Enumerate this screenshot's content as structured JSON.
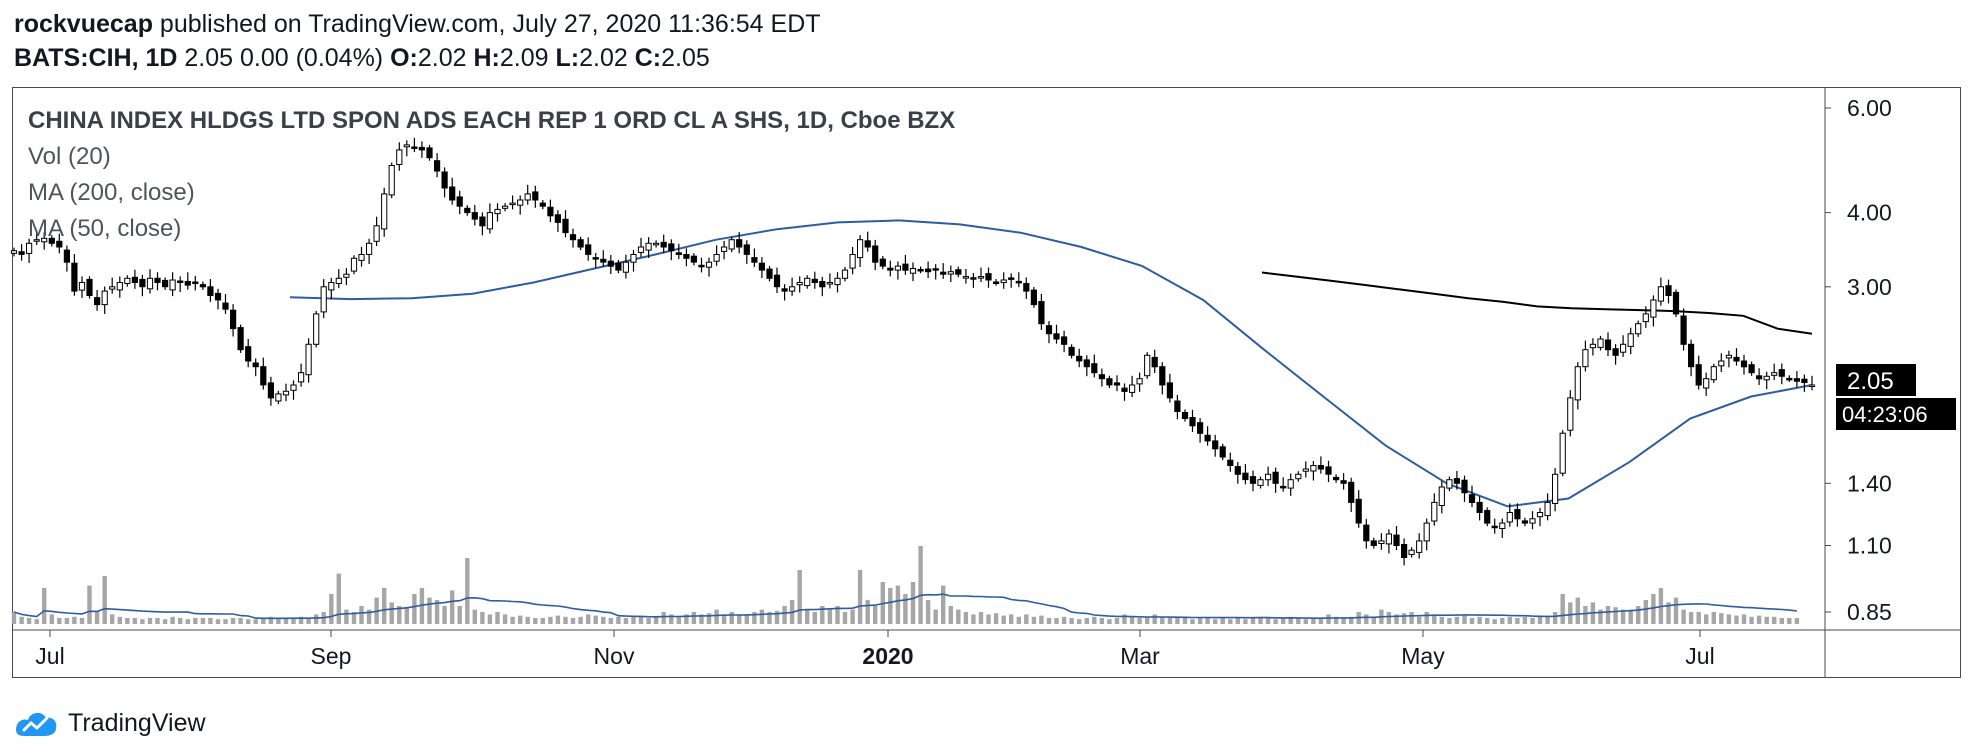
{
  "header": {
    "author": "rockvuecap",
    "published": " published on TradingView.com, July 27, 2020 11:36:54 EDT",
    "symbol": "BATS:CIH, 1D",
    "quote": "2.05 0.00 (0.04%)",
    "o_label": "O:",
    "o_val": "2.02",
    "h_label": "H:",
    "h_val": "2.09",
    "l_label": "L:",
    "l_val": "2.02",
    "c_label": "C:",
    "c_val": "2.05"
  },
  "legend": {
    "title": "CHINA INDEX HLDGS LTD SPON ADS EACH REP 1 ORD CL A SHS, 1D, Cboe BZX",
    "vol": "Vol (20)",
    "ma200": "MA (200, close)",
    "ma50": "MA (50, close)"
  },
  "footer": {
    "brand": "TradingView"
  },
  "colors": {
    "candle": "#000000",
    "ma50": "#2e5d9f",
    "ma200": "#000000",
    "volume": "#a6a6a6",
    "vol_ma": "#2e5d9f",
    "price_tag_bg": "#000000",
    "price_tag_fg": "#ffffff"
  },
  "chart_data": {
    "type": "candlestick",
    "scale": "log",
    "x_ticks": [
      "Jul",
      "Sep",
      "Nov",
      "2020",
      "Mar",
      "May",
      "Jul"
    ],
    "y_ticks": [
      6.0,
      4.0,
      3.0,
      1.4,
      1.1,
      0.85
    ],
    "last_price": "2.05",
    "countdown": "04:23:06",
    "series": [
      {
        "name": "CIH",
        "kind": "candles",
        "close": [
          3.45,
          3.4,
          3.55,
          3.6,
          3.62,
          3.55,
          3.5,
          3.3,
          2.95,
          3.05,
          2.9,
          2.8,
          2.95,
          3.0,
          3.05,
          3.1,
          3.05,
          3.0,
          3.1,
          3.05,
          3.0,
          3.08,
          3.05,
          3.02,
          3.05,
          3.0,
          2.9,
          2.85,
          2.75,
          2.55,
          2.35,
          2.25,
          2.2,
          2.05,
          1.95,
          1.98,
          2.0,
          2.05,
          2.15,
          2.4,
          2.7,
          3.0,
          3.05,
          3.1,
          3.15,
          3.35,
          3.4,
          3.55,
          3.8,
          4.3,
          4.8,
          5.1,
          5.2,
          5.15,
          5.1,
          4.95,
          4.7,
          4.4,
          4.2,
          4.1,
          4.0,
          3.9,
          3.8,
          4.0,
          4.05,
          4.1,
          4.15,
          4.2,
          4.3,
          4.2,
          4.1,
          3.95,
          3.85,
          3.7,
          3.6,
          3.5,
          3.4,
          3.35,
          3.3,
          3.25,
          3.2,
          3.3,
          3.4,
          3.5,
          3.55,
          3.55,
          3.5,
          3.45,
          3.4,
          3.35,
          3.3,
          3.25,
          3.3,
          3.4,
          3.5,
          3.6,
          3.5,
          3.4,
          3.3,
          3.2,
          3.1,
          3.0,
          2.95,
          3.0,
          3.05,
          3.1,
          3.05,
          3.0,
          3.05,
          3.1,
          3.2,
          3.4,
          3.6,
          3.5,
          3.3,
          3.25,
          3.2,
          3.25,
          3.2,
          3.22,
          3.2,
          3.18,
          3.2,
          3.15,
          3.18,
          3.15,
          3.12,
          3.1,
          3.12,
          3.08,
          3.05,
          3.08,
          3.1,
          3.05,
          2.95,
          2.8,
          2.6,
          2.5,
          2.45,
          2.4,
          2.3,
          2.25,
          2.2,
          2.15,
          2.1,
          2.05,
          2.05,
          2.0,
          2.05,
          2.1,
          2.3,
          2.2,
          2.05,
          1.95,
          1.85,
          1.8,
          1.75,
          1.7,
          1.65,
          1.6,
          1.55,
          1.5,
          1.45,
          1.42,
          1.4,
          1.42,
          1.45,
          1.4,
          1.38,
          1.42,
          1.45,
          1.48,
          1.5,
          1.48,
          1.45,
          1.42,
          1.4,
          1.3,
          1.2,
          1.12,
          1.1,
          1.12,
          1.15,
          1.1,
          1.05,
          1.08,
          1.12,
          1.2,
          1.3,
          1.38,
          1.42,
          1.4,
          1.35,
          1.3,
          1.25,
          1.2,
          1.18,
          1.2,
          1.25,
          1.22,
          1.2,
          1.22,
          1.25,
          1.3,
          1.45,
          1.7,
          1.95,
          2.2,
          2.35,
          2.4,
          2.45,
          2.35,
          2.3,
          2.4,
          2.5,
          2.6,
          2.7,
          2.85,
          3.0,
          2.9,
          2.7,
          2.4,
          2.2,
          2.05,
          2.1,
          2.2,
          2.25,
          2.3,
          2.25,
          2.2,
          2.15,
          2.1,
          2.12,
          2.15,
          2.12,
          2.1,
          2.08,
          2.07,
          2.05
        ]
      },
      {
        "name": "MA (50, close)",
        "kind": "line",
        "values": [
          2.88,
          2.86,
          2.87,
          2.92,
          3.05,
          3.22,
          3.4,
          3.6,
          3.75,
          3.85,
          3.88,
          3.82,
          3.7,
          3.5,
          3.25,
          2.85,
          2.35,
          1.95,
          1.62,
          1.4,
          1.28,
          1.32,
          1.52,
          1.8,
          1.96,
          2.05
        ]
      },
      {
        "name": "MA (200, close)",
        "kind": "line",
        "values": [
          3.17,
          3.12,
          3.07,
          3.02,
          2.97,
          2.92,
          2.87,
          2.83,
          2.78,
          2.76,
          2.75,
          2.74,
          2.73,
          2.71,
          2.68,
          2.55,
          2.5
        ]
      },
      {
        "name": "Vol (20)",
        "kind": "bars",
        "values": [
          0.1,
          0.06,
          0.05,
          0.04,
          0.3,
          0.08,
          0.05,
          0.05,
          0.06,
          0.05,
          0.32,
          0.1,
          0.4,
          0.08,
          0.06,
          0.05,
          0.05,
          0.04,
          0.05,
          0.05,
          0.04,
          0.06,
          0.05,
          0.04,
          0.05,
          0.05,
          0.05,
          0.04,
          0.04,
          0.05,
          0.05,
          0.04,
          0.04,
          0.05,
          0.06,
          0.05,
          0.05,
          0.05,
          0.06,
          0.05,
          0.08,
          0.1,
          0.25,
          0.42,
          0.12,
          0.1,
          0.15,
          0.12,
          0.22,
          0.3,
          0.18,
          0.15,
          0.14,
          0.25,
          0.3,
          0.22,
          0.2,
          0.15,
          0.28,
          0.15,
          0.55,
          0.12,
          0.1,
          0.08,
          0.1,
          0.08,
          0.06,
          0.07,
          0.06,
          0.05,
          0.05,
          0.06,
          0.07,
          0.06,
          0.05,
          0.06,
          0.08,
          0.07,
          0.06,
          0.05,
          0.06,
          0.05,
          0.06,
          0.07,
          0.05,
          0.06,
          0.1,
          0.08,
          0.06,
          0.08,
          0.1,
          0.08,
          0.09,
          0.12,
          0.08,
          0.1,
          0.08,
          0.08,
          0.1,
          0.12,
          0.1,
          0.11,
          0.15,
          0.2,
          0.45,
          0.12,
          0.1,
          0.15,
          0.12,
          0.15,
          0.1,
          0.12,
          0.45,
          0.2,
          0.15,
          0.35,
          0.3,
          0.32,
          0.25,
          0.35,
          0.65,
          0.2,
          0.12,
          0.32,
          0.15,
          0.12,
          0.1,
          0.08,
          0.1,
          0.08,
          0.09,
          0.07,
          0.08,
          0.06,
          0.08,
          0.06,
          0.07,
          0.05,
          0.05,
          0.06,
          0.05,
          0.04,
          0.05,
          0.06,
          0.05,
          0.04,
          0.05,
          0.08,
          0.06,
          0.05,
          0.06,
          0.08,
          0.06,
          0.05,
          0.06,
          0.05,
          0.04,
          0.05,
          0.05,
          0.04,
          0.05,
          0.04,
          0.05,
          0.04,
          0.05,
          0.06,
          0.05,
          0.04,
          0.05,
          0.06,
          0.05,
          0.04,
          0.05,
          0.05,
          0.08,
          0.06,
          0.05,
          0.06,
          0.1,
          0.08,
          0.06,
          0.12,
          0.1,
          0.08,
          0.09,
          0.1,
          0.06,
          0.1,
          0.08,
          0.06,
          0.05,
          0.06,
          0.07,
          0.05,
          0.06,
          0.05,
          0.04,
          0.05,
          0.06,
          0.05,
          0.06,
          0.05,
          0.06,
          0.07,
          0.1,
          0.25,
          0.18,
          0.22,
          0.15,
          0.18,
          0.12,
          0.15,
          0.14,
          0.12,
          0.12,
          0.15,
          0.2,
          0.25,
          0.3,
          0.18,
          0.22,
          0.12,
          0.1,
          0.1,
          0.08,
          0.1,
          0.09,
          0.08,
          0.07,
          0.08,
          0.06,
          0.07,
          0.06,
          0.06,
          0.05,
          0.05,
          0.05
        ]
      }
    ]
  }
}
